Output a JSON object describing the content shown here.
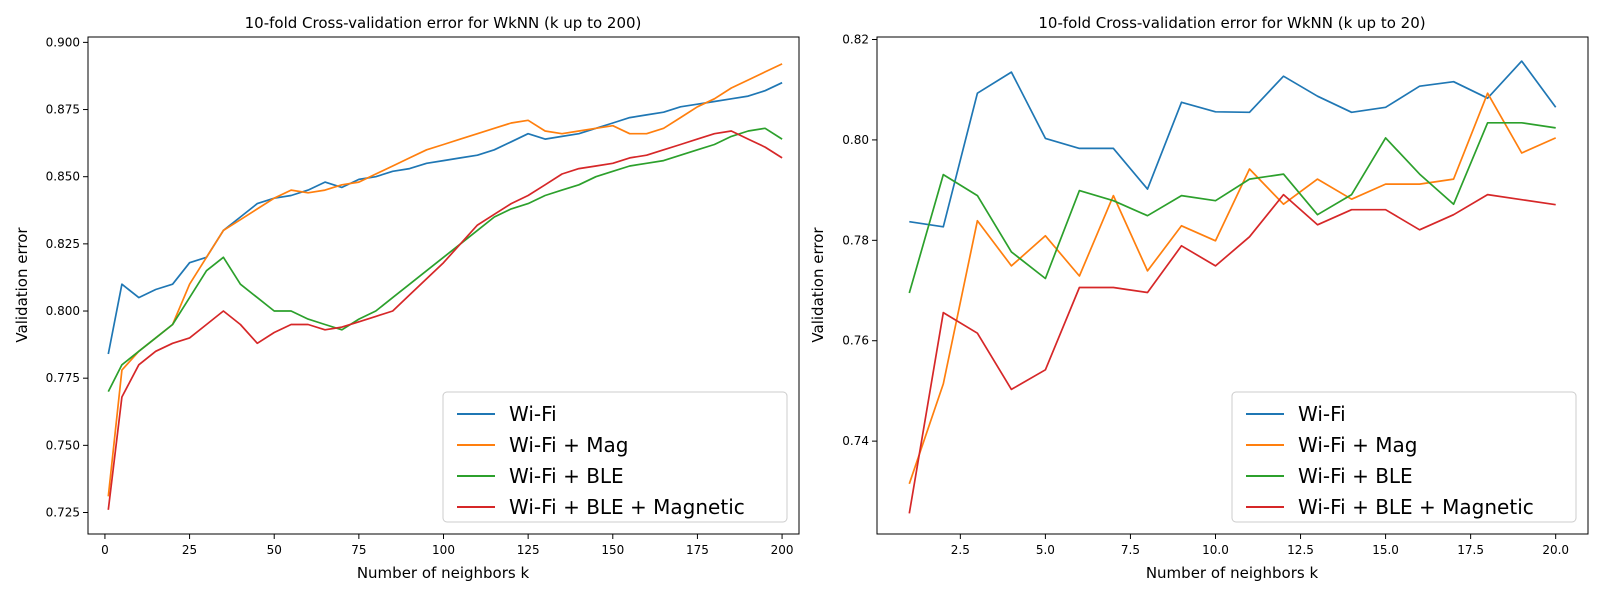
{
  "chart_data": [
    {
      "type": "line",
      "title": "10-fold Cross-validation error for WkNN (k up to 200)",
      "xlabel": "Number of neighbors k",
      "ylabel": "Validation error",
      "xlim": [
        -5,
        205
      ],
      "ylim": [
        0.717,
        0.902
      ],
      "xticks": [
        0,
        25,
        50,
        75,
        100,
        125,
        150,
        175,
        200
      ],
      "yticks": [
        0.725,
        0.75,
        0.775,
        0.8,
        0.825,
        0.85,
        0.875,
        0.9
      ],
      "x_start": 1,
      "x_end": 200,
      "x_step": 5,
      "grid": false,
      "legend_position": "lower-right",
      "series": [
        {
          "name": "Wi-Fi",
          "color": "#1f77b4",
          "values": [
            0.784,
            0.81,
            0.805,
            0.808,
            0.81,
            0.818,
            0.82,
            0.83,
            0.835,
            0.84,
            0.842,
            0.843,
            0.845,
            0.848,
            0.846,
            0.849,
            0.85,
            0.852,
            0.853,
            0.855,
            0.856,
            0.857,
            0.858,
            0.86,
            0.863,
            0.866,
            0.864,
            0.865,
            0.866,
            0.868,
            0.87,
            0.872,
            0.873,
            0.874,
            0.876,
            0.877,
            0.878,
            0.879,
            0.88,
            0.882,
            0.885
          ]
        },
        {
          "name": "Wi-Fi + Mag",
          "color": "#ff7f0e",
          "values": [
            0.731,
            0.778,
            0.785,
            0.79,
            0.795,
            0.81,
            0.82,
            0.83,
            0.834,
            0.838,
            0.842,
            0.845,
            0.844,
            0.845,
            0.847,
            0.848,
            0.851,
            0.854,
            0.857,
            0.86,
            0.862,
            0.864,
            0.866,
            0.868,
            0.87,
            0.871,
            0.867,
            0.866,
            0.867,
            0.868,
            0.869,
            0.866,
            0.866,
            0.868,
            0.872,
            0.876,
            0.879,
            0.883,
            0.886,
            0.889,
            0.892
          ]
        },
        {
          "name": "Wi-Fi + BLE",
          "color": "#2ca02c",
          "values": [
            0.77,
            0.78,
            0.785,
            0.79,
            0.795,
            0.805,
            0.815,
            0.82,
            0.81,
            0.805,
            0.8,
            0.8,
            0.797,
            0.795,
            0.793,
            0.797,
            0.8,
            0.805,
            0.81,
            0.815,
            0.82,
            0.825,
            0.83,
            0.835,
            0.838,
            0.84,
            0.843,
            0.845,
            0.847,
            0.85,
            0.852,
            0.854,
            0.855,
            0.856,
            0.858,
            0.86,
            0.862,
            0.865,
            0.867,
            0.868,
            0.864
          ]
        },
        {
          "name": "Wi-Fi + BLE + Magnetic",
          "color": "#d62728",
          "values": [
            0.726,
            0.768,
            0.78,
            0.785,
            0.788,
            0.79,
            0.795,
            0.8,
            0.795,
            0.788,
            0.792,
            0.795,
            0.795,
            0.793,
            0.794,
            0.796,
            0.798,
            0.8,
            0.806,
            0.812,
            0.818,
            0.825,
            0.832,
            0.836,
            0.84,
            0.843,
            0.847,
            0.851,
            0.853,
            0.854,
            0.855,
            0.857,
            0.858,
            0.86,
            0.862,
            0.864,
            0.866,
            0.867,
            0.864,
            0.861,
            0.857
          ]
        }
      ]
    },
    {
      "type": "line",
      "title": "10-fold Cross-validation error for WkNN (k up to 20)",
      "xlabel": "Number of neighbors k",
      "ylabel": "Validation error",
      "xlim": [
        0.05,
        20.95
      ],
      "ylim": [
        0.7215,
        0.8205
      ],
      "xticks": [
        2.5,
        5.0,
        7.5,
        10.0,
        12.5,
        15.0,
        17.5,
        20.0
      ],
      "yticks": [
        0.74,
        0.76,
        0.78,
        0.8,
        0.82
      ],
      "grid": false,
      "legend_position": "lower-right",
      "x": [
        1,
        2,
        3,
        4,
        5,
        6,
        7,
        8,
        9,
        10,
        11,
        12,
        13,
        14,
        15,
        16,
        17,
        18,
        19,
        20
      ],
      "series": [
        {
          "name": "Wi-Fi",
          "color": "#1f77b4",
          "values": [
            0.7837,
            0.7827,
            0.8093,
            0.8135,
            0.8003,
            0.7983,
            0.7983,
            0.7902,
            0.8075,
            0.8056,
            0.8055,
            0.8127,
            0.8087,
            0.8055,
            0.8065,
            0.8107,
            0.8116,
            0.8083,
            0.8157,
            0.8065
          ]
        },
        {
          "name": "Wi-Fi + Mag",
          "color": "#ff7f0e",
          "values": [
            0.7315,
            0.7514,
            0.7839,
            0.7749,
            0.7809,
            0.7729,
            0.7889,
            0.7739,
            0.7829,
            0.7799,
            0.7942,
            0.7872,
            0.7922,
            0.7882,
            0.7912,
            0.7912,
            0.7922,
            0.8093,
            0.7974,
            0.8004
          ]
        },
        {
          "name": "Wi-Fi + BLE",
          "color": "#2ca02c",
          "values": [
            0.7695,
            0.7931,
            0.7889,
            0.7777,
            0.7724,
            0.7899,
            0.7879,
            0.7849,
            0.7889,
            0.7879,
            0.7922,
            0.7932,
            0.7851,
            0.7891,
            0.8004,
            0.7932,
            0.7872,
            0.8034,
            0.8034,
            0.8024
          ]
        },
        {
          "name": "Wi-Fi + BLE + Magnetic",
          "color": "#d62728",
          "values": [
            0.7256,
            0.7656,
            0.7615,
            0.7503,
            0.7542,
            0.7706,
            0.7706,
            0.7696,
            0.7789,
            0.7749,
            0.7807,
            0.7891,
            0.7831,
            0.7861,
            0.7861,
            0.7821,
            0.7851,
            0.7891,
            0.7881,
            0.7871
          ]
        }
      ]
    }
  ]
}
